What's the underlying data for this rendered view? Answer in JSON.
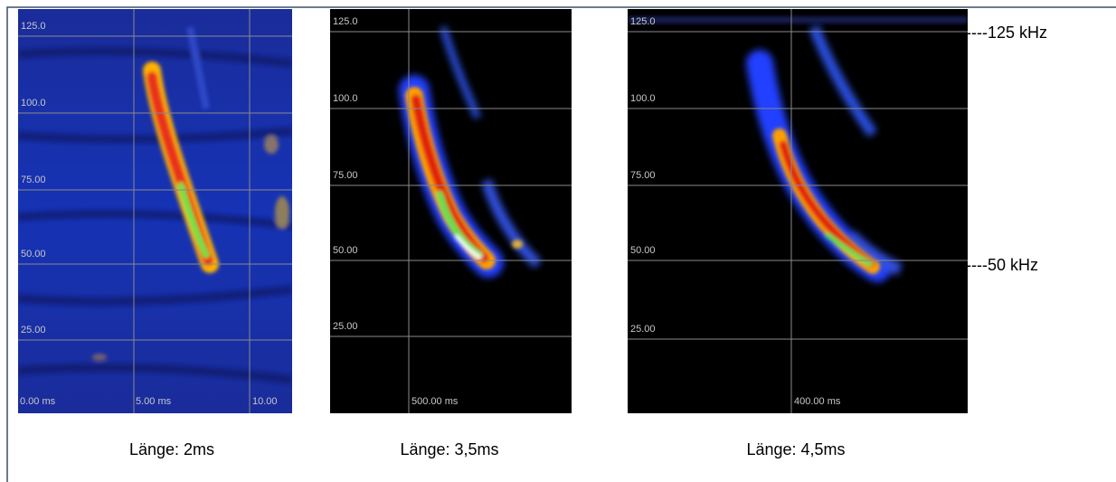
{
  "panels": [
    {
      "y_labels": [
        "125.0",
        "100.0",
        "75.00",
        "50.00",
        "25.00"
      ],
      "x_labels": [
        "0.00 ms",
        "5.00 ms",
        "10.00"
      ],
      "caption": "Länge: 2ms"
    },
    {
      "y_labels": [
        "125.0",
        "100.0",
        "75.00",
        "50.00",
        "25.00"
      ],
      "x_labels": [
        "500.00 ms"
      ],
      "caption": "Länge: 3,5ms"
    },
    {
      "y_labels": [
        "125.0",
        "100.0",
        "75.00",
        "50.00",
        "25.00"
      ],
      "x_labels": [
        "400.00 ms"
      ],
      "caption": "Länge: 4,5ms"
    }
  ],
  "annotations": [
    "----125 kHz",
    "----50 kHz"
  ]
}
